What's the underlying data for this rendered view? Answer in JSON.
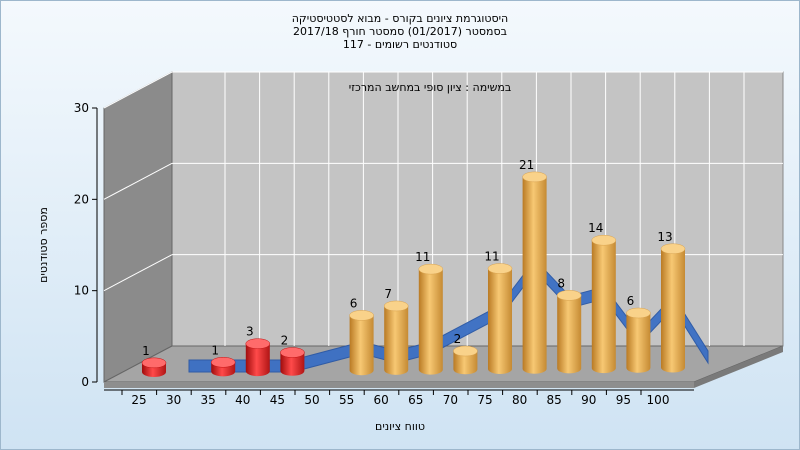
{
  "chart_data": {
    "type": "bar",
    "title_lines": [
      "היסטוגרמת ציונים בקורס - מבוא לסטטיסטיקה",
      "בסמסטר (01/2017) סמסטר חורף 2017/18",
      "סטודנטים רשומים - 117"
    ],
    "annotation": "במשימה : ציון סופי במחשב המרכזי",
    "xlabel": "טווח ציונים",
    "ylabel": "מספר סטודנטים",
    "x_ticks": [
      "25",
      "30",
      "35",
      "40",
      "45",
      "50",
      "55",
      "60",
      "65",
      "70",
      "75",
      "80",
      "85",
      "90",
      "95",
      "100"
    ],
    "y_ticks": [
      "0",
      "10",
      "20",
      "30"
    ],
    "ylim": [
      0,
      30
    ],
    "grid": true,
    "bars": [
      {
        "x": "25",
        "value": 1,
        "color": "red"
      },
      {
        "x": "35",
        "value": 1,
        "color": "red"
      },
      {
        "x": "40",
        "value": 3,
        "color": "red"
      },
      {
        "x": "45",
        "value": 2,
        "color": "red"
      },
      {
        "x": "55",
        "value": 6,
        "color": "gold"
      },
      {
        "x": "60",
        "value": 7,
        "color": "gold"
      },
      {
        "x": "65",
        "value": 11,
        "color": "gold"
      },
      {
        "x": "70",
        "value": 2,
        "color": "gold"
      },
      {
        "x": "75",
        "value": 11,
        "color": "gold"
      },
      {
        "x": "80",
        "value": 21,
        "color": "gold"
      },
      {
        "x": "85",
        "value": 8,
        "color": "gold"
      },
      {
        "x": "90",
        "value": 14,
        "color": "gold"
      },
      {
        "x": "95",
        "value": 6,
        "color": "gold"
      },
      {
        "x": "100",
        "value": 13,
        "color": "gold"
      }
    ],
    "back_series": {
      "type": "area-ribbon",
      "color": "#3a6fc4",
      "values": [
        0,
        0,
        0,
        0,
        1,
        2,
        1,
        2,
        4,
        6,
        11,
        7,
        8,
        3,
        7,
        1
      ]
    },
    "colors": {
      "red": "#d92020",
      "gold": "#e9a94a",
      "ribbon": "#3a6fc4",
      "wall": "#8a8a8a",
      "plot": "#c4c4c4"
    }
  }
}
